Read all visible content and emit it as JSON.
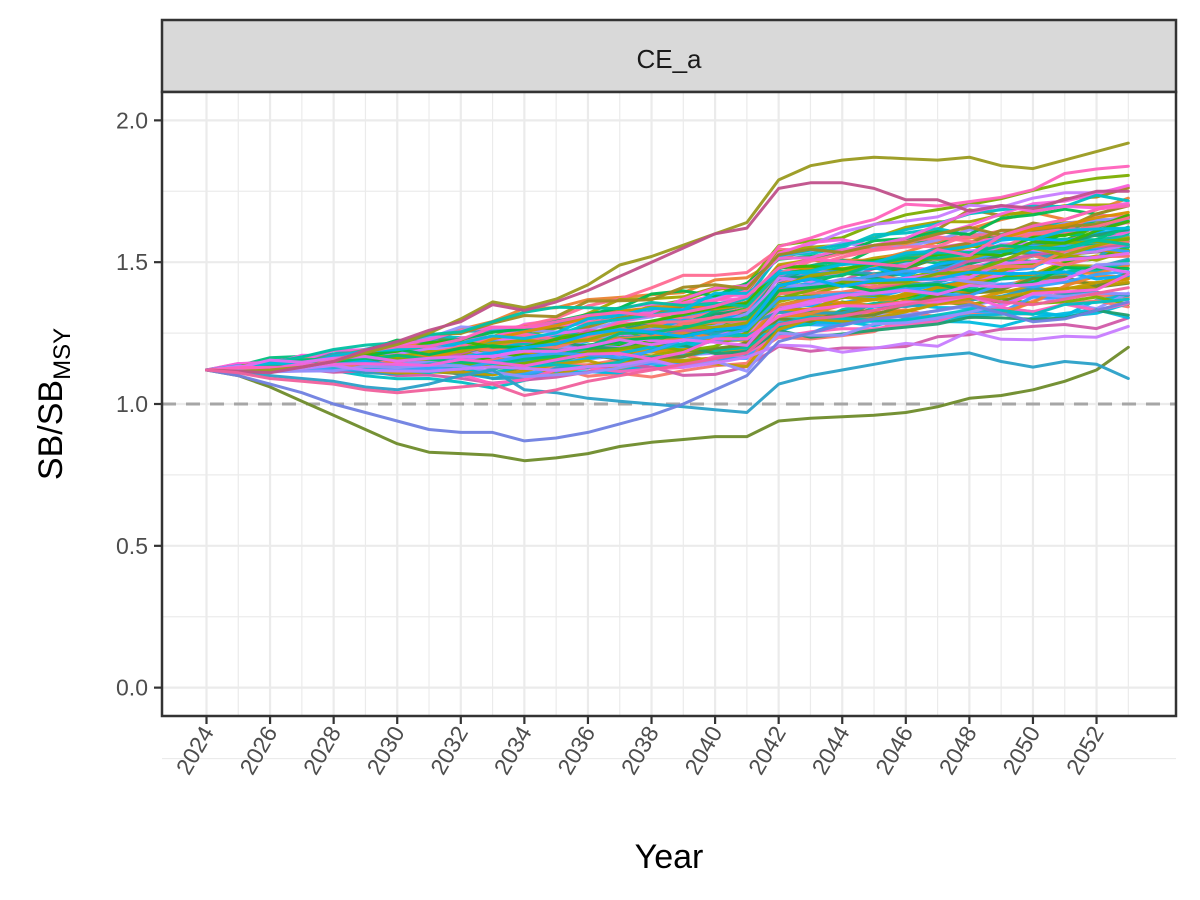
{
  "chart_data": {
    "type": "line",
    "facet_label": "CE_a",
    "xlabel": "Year",
    "ylabel_main": "SB/SB",
    "ylabel_sub": "MSY",
    "x_ticks": [
      2024,
      2026,
      2028,
      2030,
      2032,
      2034,
      2036,
      2038,
      2040,
      2042,
      2044,
      2046,
      2048,
      2050,
      2052
    ],
    "y_ticks": [
      "0.0",
      "0.5",
      "1.0",
      "1.5",
      "2.0"
    ],
    "xlim": [
      2022.6,
      2054.5
    ],
    "ylim": [
      -0.1,
      2.1
    ],
    "reference_line": 1.0,
    "grid": true,
    "legend": "none",
    "n_series": 100,
    "start_year": 2024,
    "end_year": 2053,
    "start_value": 1.12,
    "x": [
      2024,
      2025,
      2026,
      2027,
      2028,
      2029,
      2030,
      2031,
      2032,
      2033,
      2034,
      2035,
      2036,
      2037,
      2038,
      2039,
      2040,
      2041,
      2042,
      2043,
      2044,
      2045,
      2046,
      2047,
      2048,
      2049,
      2050,
      2051,
      2052,
      2053
    ],
    "example_series": [
      {
        "values": [
          1.12,
          1.1,
          1.06,
          1.01,
          0.96,
          0.91,
          0.86,
          0.83,
          0.825,
          0.82,
          0.8,
          0.81,
          0.825,
          0.85,
          0.865,
          0.875,
          0.885,
          0.885,
          0.94,
          0.95,
          0.955,
          0.96,
          0.97,
          0.99,
          1.02,
          1.03,
          1.05,
          1.08,
          1.12,
          1.2
        ],
        "color": "#6e8b2a"
      },
      {
        "values": [
          1.12,
          1.115,
          1.12,
          1.13,
          1.15,
          1.18,
          1.21,
          1.25,
          1.3,
          1.36,
          1.34,
          1.37,
          1.42,
          1.49,
          1.52,
          1.56,
          1.6,
          1.64,
          1.79,
          1.84,
          1.86,
          1.87,
          1.865,
          1.86,
          1.87,
          1.84,
          1.83,
          1.86,
          1.89,
          1.92
        ],
        "color": "#9a9a1f"
      },
      {
        "values": [
          1.12,
          1.11,
          1.1,
          1.09,
          1.08,
          1.06,
          1.05,
          1.07,
          1.1,
          1.12,
          1.05,
          1.04,
          1.02,
          1.01,
          1.0,
          0.99,
          0.98,
          0.97,
          1.07,
          1.1,
          1.12,
          1.14,
          1.16,
          1.17,
          1.18,
          1.15,
          1.13,
          1.15,
          1.14,
          1.09
        ],
        "color": "#2aa0c8"
      },
      {
        "values": [
          1.12,
          1.115,
          1.11,
          1.13,
          1.15,
          1.19,
          1.22,
          1.26,
          1.29,
          1.35,
          1.33,
          1.36,
          1.4,
          1.45,
          1.5,
          1.55,
          1.6,
          1.62,
          1.76,
          1.78,
          1.78,
          1.76,
          1.72,
          1.72,
          1.68,
          1.7,
          1.69,
          1.72,
          1.75,
          1.75
        ],
        "color": "#c0508a"
      },
      {
        "values": [
          1.12,
          1.1,
          1.07,
          1.04,
          1.0,
          0.97,
          0.94,
          0.91,
          0.9,
          0.9,
          0.87,
          0.88,
          0.9,
          0.93,
          0.96,
          1.0,
          1.05,
          1.1,
          1.22,
          1.25,
          1.28,
          1.3,
          1.31,
          1.33,
          1.35,
          1.32,
          1.29,
          1.3,
          1.33,
          1.36
        ],
        "color": "#6f7fe0"
      },
      {
        "values": [
          1.12,
          1.11,
          1.09,
          1.08,
          1.07,
          1.05,
          1.04,
          1.05,
          1.06,
          1.07,
          1.03,
          1.05,
          1.08,
          1.1,
          1.12,
          1.14,
          1.16,
          1.18,
          1.28,
          1.3,
          1.31,
          1.33,
          1.35,
          1.37,
          1.38,
          1.36,
          1.35,
          1.37,
          1.39,
          1.41
        ],
        "color": "#f0609c"
      }
    ],
    "colors": [
      "#f8766d",
      "#ea8331",
      "#d89000",
      "#c09b00",
      "#a3a500",
      "#7cae00",
      "#39b600",
      "#00bb4e",
      "#00bf7d",
      "#00c1a3",
      "#00bfc4",
      "#00bae0",
      "#00b0f6",
      "#35a2ff",
      "#9590ff",
      "#c77cff",
      "#e76bf3",
      "#fa62db",
      "#ff62bc",
      "#ff6c91",
      "#6e8b2a",
      "#1f9e6e",
      "#2a9fbf",
      "#d15aa8",
      "#a08a1f"
    ]
  }
}
